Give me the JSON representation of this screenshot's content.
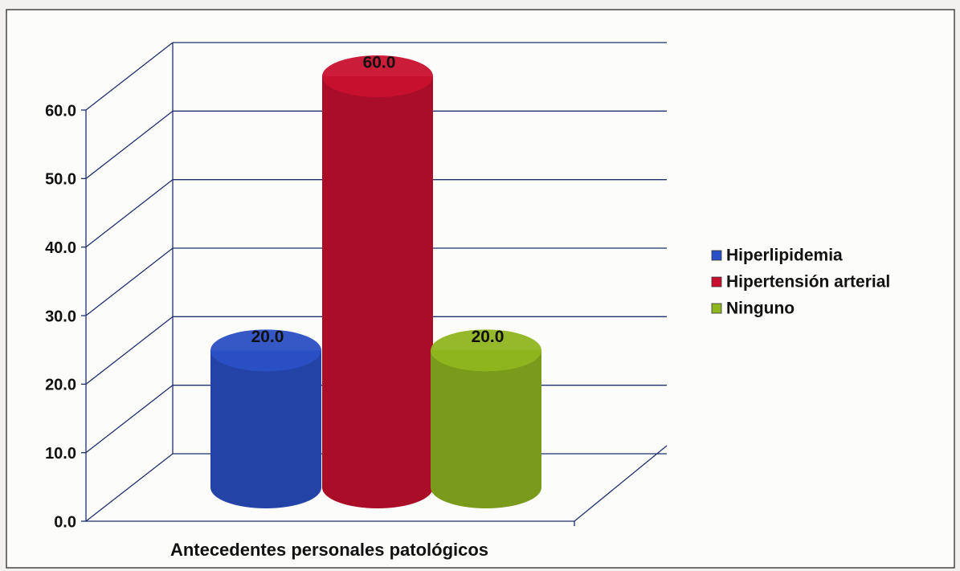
{
  "chart_data": {
    "type": "bar",
    "categories": [
      "Antecedentes personales patológicos"
    ],
    "series": [
      {
        "name": "Hiperlipidemia",
        "color": "#2b4fc4",
        "values": [
          20
        ],
        "value_labels": [
          "20.0"
        ]
      },
      {
        "name": "Hipertensión arterial",
        "color": "#c8102e",
        "values": [
          60
        ],
        "value_labels": [
          "60.0"
        ]
      },
      {
        "name": "Ninguno",
        "color": "#8fb51f",
        "values": [
          20
        ],
        "value_labels": [
          "20.0"
        ]
      }
    ],
    "ylim": [
      0,
      60
    ],
    "yticks": [
      {
        "value": 0,
        "label": "0.0"
      },
      {
        "value": 10,
        "label": "10.0"
      },
      {
        "value": 20,
        "label": "20.0"
      },
      {
        "value": 30,
        "label": "30.0"
      },
      {
        "value": 40,
        "label": "40.0"
      },
      {
        "value": 50,
        "label": "50.0"
      },
      {
        "value": 60,
        "label": "60.0"
      }
    ],
    "grid": true,
    "legend": "right"
  }
}
